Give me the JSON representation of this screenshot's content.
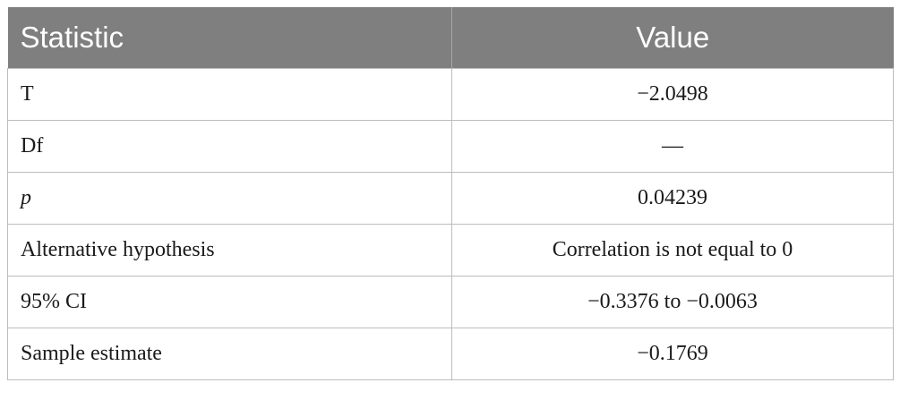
{
  "table": {
    "headers": {
      "statistic": "Statistic",
      "value": "Value"
    },
    "rows": [
      {
        "statistic": "T",
        "value": "−2.0498"
      },
      {
        "statistic": "Df",
        "value": "—"
      },
      {
        "statistic": "p",
        "value": "0.04239"
      },
      {
        "statistic": "Alternative hypothesis",
        "value": "Correlation is not equal to 0"
      },
      {
        "statistic": "95% CI",
        "value": "−0.3376 to −0.0063"
      },
      {
        "statistic": "Sample estimate",
        "value": "−0.1769"
      }
    ]
  }
}
